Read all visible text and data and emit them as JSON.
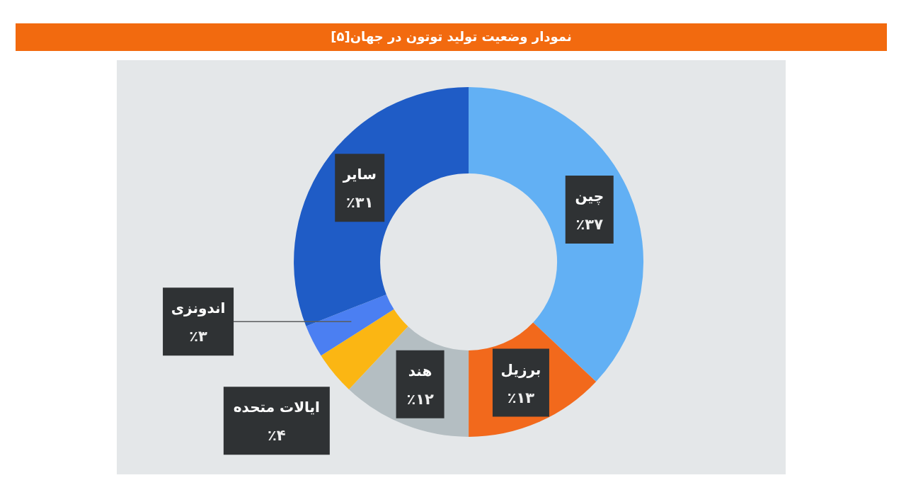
{
  "chart_data": {
    "type": "donut",
    "title": "نمودار وضعیت تولید توتون در جهان[۵]",
    "categories": [
      "چین",
      "برزیل",
      "هند",
      "ایالات متحده",
      "اندونزی",
      "سایر"
    ],
    "values": [
      37,
      13,
      12,
      4,
      3,
      31
    ],
    "colors": [
      "#62b0f4",
      "#f2691c",
      "#b4bec2",
      "#fbb613",
      "#4b7ff2",
      "#1f5cc6"
    ],
    "value_labels": [
      "٪۳۷",
      "٪۱۳",
      "٪۱۲",
      "٪۴",
      "٪۳",
      "٪۳۱"
    ]
  }
}
